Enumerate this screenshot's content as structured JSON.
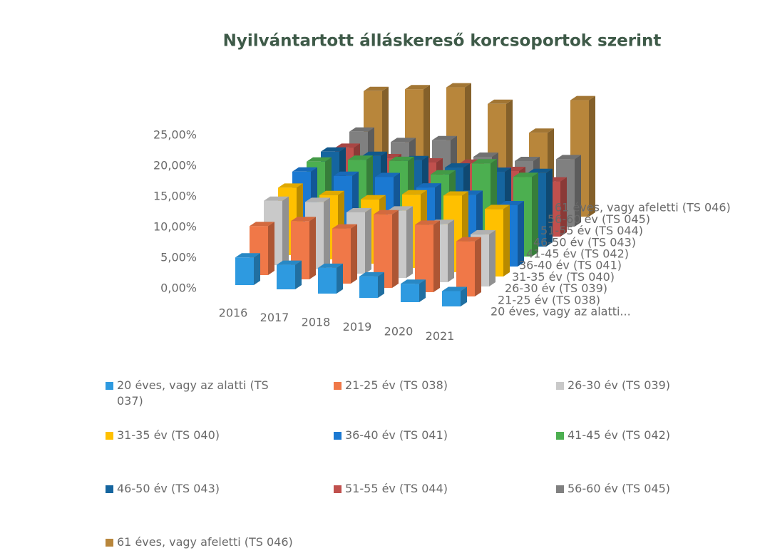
{
  "chart_data": {
    "type": "bar3d",
    "title": "Nyilvántartott álláskereső korcsoportok szerint",
    "categories": [
      "2016",
      "2017",
      "2018",
      "2019",
      "2020",
      "2021"
    ],
    "ylim": [
      0,
      25
    ],
    "yticks": [
      {
        "value": 0,
        "label": "0,00%"
      },
      {
        "value": 5,
        "label": "5,00%"
      },
      {
        "value": 10,
        "label": "10,00%"
      },
      {
        "value": 15,
        "label": "15,00%"
      },
      {
        "value": 20,
        "label": "20,00%"
      },
      {
        "value": 25,
        "label": "25,00%"
      }
    ],
    "depth_labels": [
      "20 éves, vagy az alatti...",
      "21-25 év (TS 038)",
      "26-30 év (TS 039)",
      "31-35 év (TS 040)",
      "36-40 év (TS 041)",
      "41-45 év (TS 042)",
      "46-50 év (TS 043)",
      "51-55 év (TS 044)",
      "56-60 év (TS 045)",
      "61 éves, vagy afeletti (TS 046)"
    ],
    "series": [
      {
        "name": "20 éves, vagy az alatti (TS 037)",
        "color": "#2e9ae0",
        "values": [
          4.5,
          4,
          4.2,
          3.5,
          3,
          2.5
        ]
      },
      {
        "name": "21-25 év (TS 038)",
        "color": "#f07848",
        "values": [
          8,
          9.5,
          9,
          12,
          11,
          9
        ]
      },
      {
        "name": "26-30 év (TS 039)",
        "color": "#c9c9c9",
        "values": [
          10.5,
          11,
          10,
          11,
          9.5,
          8.5
        ]
      },
      {
        "name": "31-35 év (TS 040)",
        "color": "#ffc000",
        "values": [
          11,
          10.5,
          10.5,
          12,
          12.5,
          11
        ]
      },
      {
        "name": "36-40 év (TS 041)",
        "color": "#1b79d2",
        "values": [
          12,
          12,
          12.5,
          11.5,
          11,
          10
        ]
      },
      {
        "name": "41-45 év (TS 042)",
        "color": "#4caf50",
        "values": [
          12,
          13,
          13.5,
          12,
          14.5,
          13
        ]
      },
      {
        "name": "46-50 év (TS 043)",
        "color": "#15659f",
        "values": [
          12,
          12,
          12,
          11.5,
          11.5,
          12
        ]
      },
      {
        "name": "51-55 év (TS 044)",
        "color": "#c0504d",
        "values": [
          11,
          10,
          10,
          10.5,
          10,
          9
        ]
      },
      {
        "name": "56-60 év (TS 045)",
        "color": "#808080",
        "values": [
          12,
          11,
          12,
          10,
          10,
          11
        ]
      },
      {
        "name": "61 éves, vagy afeletti (TS 046)",
        "color": "#b8863b",
        "values": [
          17,
          18,
          19,
          17,
          13,
          19
        ]
      }
    ]
  }
}
